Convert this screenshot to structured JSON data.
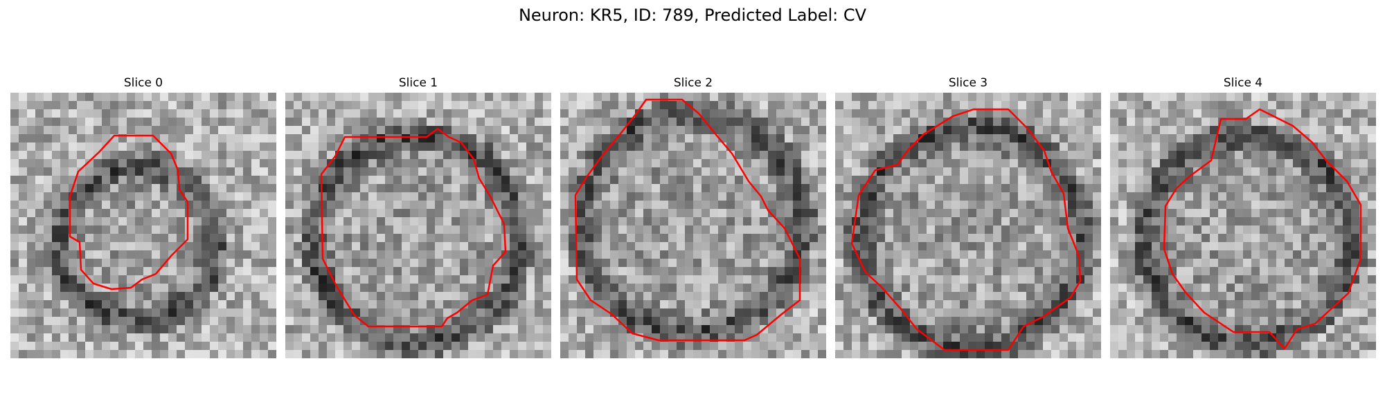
{
  "figure": {
    "title": "Neuron: KR5, ID: 789, Predicted Label: CV",
    "contour_color": "#ff0000"
  },
  "slices": [
    {
      "title": "Slice 0"
    },
    {
      "title": "Slice 1"
    },
    {
      "title": "Slice 2"
    },
    {
      "title": "Slice 3"
    },
    {
      "title": "Slice 4"
    }
  ]
}
